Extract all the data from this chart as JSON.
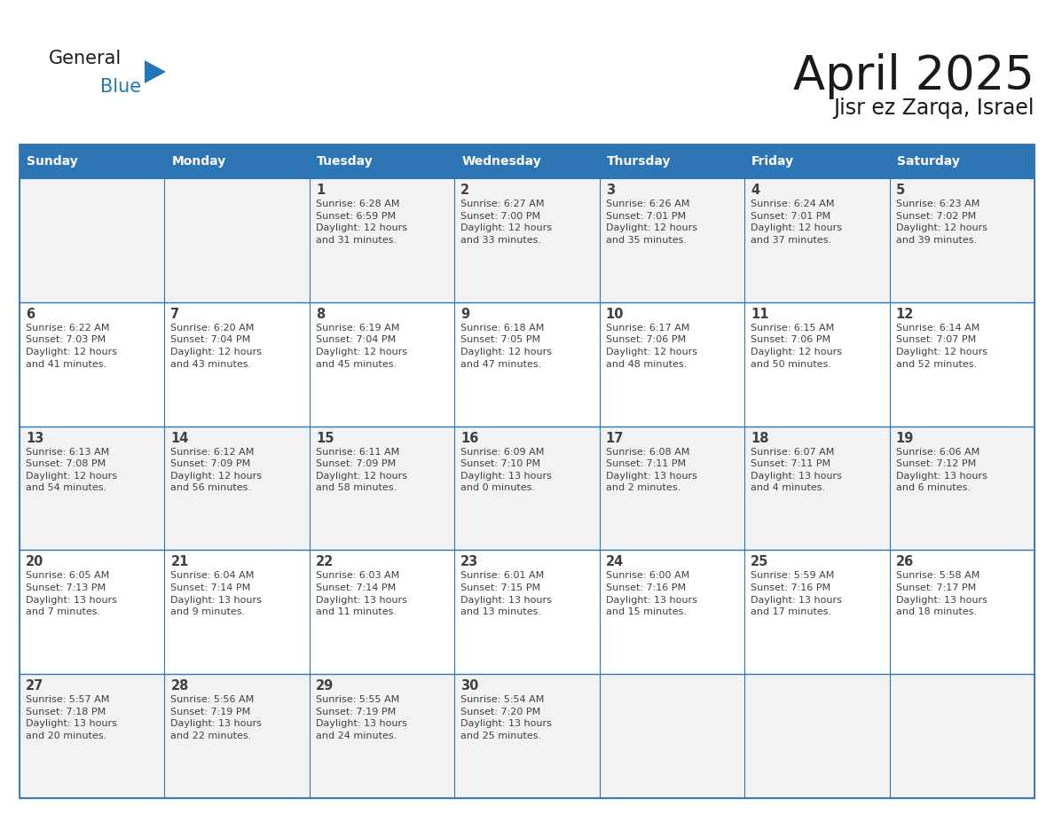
{
  "title": "April 2025",
  "subtitle": "Jisr ez Zarqa, Israel",
  "header_color": "#2E75B6",
  "header_text_color": "#FFFFFF",
  "cell_bg_even": "#F2F2F2",
  "cell_bg_odd": "#FFFFFF",
  "border_color": "#2E75B6",
  "text_color": "#404040",
  "days_of_week": [
    "Sunday",
    "Monday",
    "Tuesday",
    "Wednesday",
    "Thursday",
    "Friday",
    "Saturday"
  ],
  "calendar_data": [
    [
      {
        "day": "",
        "info": ""
      },
      {
        "day": "",
        "info": ""
      },
      {
        "day": "1",
        "info": "Sunrise: 6:28 AM\nSunset: 6:59 PM\nDaylight: 12 hours\nand 31 minutes."
      },
      {
        "day": "2",
        "info": "Sunrise: 6:27 AM\nSunset: 7:00 PM\nDaylight: 12 hours\nand 33 minutes."
      },
      {
        "day": "3",
        "info": "Sunrise: 6:26 AM\nSunset: 7:01 PM\nDaylight: 12 hours\nand 35 minutes."
      },
      {
        "day": "4",
        "info": "Sunrise: 6:24 AM\nSunset: 7:01 PM\nDaylight: 12 hours\nand 37 minutes."
      },
      {
        "day": "5",
        "info": "Sunrise: 6:23 AM\nSunset: 7:02 PM\nDaylight: 12 hours\nand 39 minutes."
      }
    ],
    [
      {
        "day": "6",
        "info": "Sunrise: 6:22 AM\nSunset: 7:03 PM\nDaylight: 12 hours\nand 41 minutes."
      },
      {
        "day": "7",
        "info": "Sunrise: 6:20 AM\nSunset: 7:04 PM\nDaylight: 12 hours\nand 43 minutes."
      },
      {
        "day": "8",
        "info": "Sunrise: 6:19 AM\nSunset: 7:04 PM\nDaylight: 12 hours\nand 45 minutes."
      },
      {
        "day": "9",
        "info": "Sunrise: 6:18 AM\nSunset: 7:05 PM\nDaylight: 12 hours\nand 47 minutes."
      },
      {
        "day": "10",
        "info": "Sunrise: 6:17 AM\nSunset: 7:06 PM\nDaylight: 12 hours\nand 48 minutes."
      },
      {
        "day": "11",
        "info": "Sunrise: 6:15 AM\nSunset: 7:06 PM\nDaylight: 12 hours\nand 50 minutes."
      },
      {
        "day": "12",
        "info": "Sunrise: 6:14 AM\nSunset: 7:07 PM\nDaylight: 12 hours\nand 52 minutes."
      }
    ],
    [
      {
        "day": "13",
        "info": "Sunrise: 6:13 AM\nSunset: 7:08 PM\nDaylight: 12 hours\nand 54 minutes."
      },
      {
        "day": "14",
        "info": "Sunrise: 6:12 AM\nSunset: 7:09 PM\nDaylight: 12 hours\nand 56 minutes."
      },
      {
        "day": "15",
        "info": "Sunrise: 6:11 AM\nSunset: 7:09 PM\nDaylight: 12 hours\nand 58 minutes."
      },
      {
        "day": "16",
        "info": "Sunrise: 6:09 AM\nSunset: 7:10 PM\nDaylight: 13 hours\nand 0 minutes."
      },
      {
        "day": "17",
        "info": "Sunrise: 6:08 AM\nSunset: 7:11 PM\nDaylight: 13 hours\nand 2 minutes."
      },
      {
        "day": "18",
        "info": "Sunrise: 6:07 AM\nSunset: 7:11 PM\nDaylight: 13 hours\nand 4 minutes."
      },
      {
        "day": "19",
        "info": "Sunrise: 6:06 AM\nSunset: 7:12 PM\nDaylight: 13 hours\nand 6 minutes."
      }
    ],
    [
      {
        "day": "20",
        "info": "Sunrise: 6:05 AM\nSunset: 7:13 PM\nDaylight: 13 hours\nand 7 minutes."
      },
      {
        "day": "21",
        "info": "Sunrise: 6:04 AM\nSunset: 7:14 PM\nDaylight: 13 hours\nand 9 minutes."
      },
      {
        "day": "22",
        "info": "Sunrise: 6:03 AM\nSunset: 7:14 PM\nDaylight: 13 hours\nand 11 minutes."
      },
      {
        "day": "23",
        "info": "Sunrise: 6:01 AM\nSunset: 7:15 PM\nDaylight: 13 hours\nand 13 minutes."
      },
      {
        "day": "24",
        "info": "Sunrise: 6:00 AM\nSunset: 7:16 PM\nDaylight: 13 hours\nand 15 minutes."
      },
      {
        "day": "25",
        "info": "Sunrise: 5:59 AM\nSunset: 7:16 PM\nDaylight: 13 hours\nand 17 minutes."
      },
      {
        "day": "26",
        "info": "Sunrise: 5:58 AM\nSunset: 7:17 PM\nDaylight: 13 hours\nand 18 minutes."
      }
    ],
    [
      {
        "day": "27",
        "info": "Sunrise: 5:57 AM\nSunset: 7:18 PM\nDaylight: 13 hours\nand 20 minutes."
      },
      {
        "day": "28",
        "info": "Sunrise: 5:56 AM\nSunset: 7:19 PM\nDaylight: 13 hours\nand 22 minutes."
      },
      {
        "day": "29",
        "info": "Sunrise: 5:55 AM\nSunset: 7:19 PM\nDaylight: 13 hours\nand 24 minutes."
      },
      {
        "day": "30",
        "info": "Sunrise: 5:54 AM\nSunset: 7:20 PM\nDaylight: 13 hours\nand 25 minutes."
      },
      {
        "day": "",
        "info": ""
      },
      {
        "day": "",
        "info": ""
      },
      {
        "day": "",
        "info": ""
      }
    ]
  ],
  "logo_general_color": "#1A1A1A",
  "logo_blue_color": "#2277BB",
  "logo_triangle_color": "#2277BB"
}
